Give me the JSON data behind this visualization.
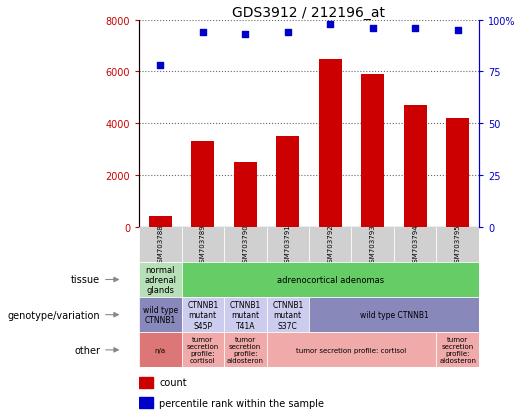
{
  "title": "GDS3912 / 212196_at",
  "samples": [
    "GSM703788",
    "GSM703789",
    "GSM703790",
    "GSM703791",
    "GSM703792",
    "GSM703793",
    "GSM703794",
    "GSM703795"
  ],
  "counts": [
    400,
    3300,
    2500,
    3500,
    6500,
    5900,
    4700,
    4200
  ],
  "percentile_ranks": [
    78,
    94,
    93,
    94,
    98,
    96,
    96,
    95
  ],
  "bar_color": "#cc0000",
  "dot_color": "#0000cc",
  "left_axis_color": "#cc0000",
  "right_axis_color": "#0000cc",
  "ylim_left": [
    0,
    8000
  ],
  "ylim_right": [
    0,
    100
  ],
  "yticks_left": [
    0,
    2000,
    4000,
    6000,
    8000
  ],
  "ytick_labels_left": [
    "0",
    "2000",
    "4000",
    "6000",
    "8000"
  ],
  "yticks_right": [
    0,
    25,
    50,
    75,
    100
  ],
  "ytick_labels_right": [
    "0",
    "25",
    "50",
    "75",
    "100%"
  ],
  "tissue_cells": [
    {
      "text": "normal\nadrenal\nglands",
      "colspan": 1,
      "color": "#b8e0b8"
    },
    {
      "text": "adrenocortical adenomas",
      "colspan": 7,
      "color": "#66cc66"
    }
  ],
  "genotype_cells": [
    {
      "text": "wild type\nCTNNB1",
      "colspan": 1,
      "color": "#8888bb"
    },
    {
      "text": "CTNNB1\nmutant\nS45P",
      "colspan": 1,
      "color": "#ccccee"
    },
    {
      "text": "CTNNB1\nmutant\nT41A",
      "colspan": 1,
      "color": "#ccccee"
    },
    {
      "text": "CTNNB1\nmutant\nS37C",
      "colspan": 1,
      "color": "#ccccee"
    },
    {
      "text": "wild type CTNNB1",
      "colspan": 4,
      "color": "#8888bb"
    }
  ],
  "other_cells": [
    {
      "text": "n/a",
      "colspan": 1,
      "color": "#dd7777"
    },
    {
      "text": "tumor\nsecretion\nprofile:\ncortisol",
      "colspan": 1,
      "color": "#f0aaaa"
    },
    {
      "text": "tumor\nsecretion\nprofile:\naldosteron",
      "colspan": 1,
      "color": "#f0aaaa"
    },
    {
      "text": "tumor secretion profile: cortisol",
      "colspan": 4,
      "color": "#f0aaaa"
    },
    {
      "text": "tumor\nsecretion\nprofile:\naldosteron",
      "colspan": 1,
      "color": "#f0aaaa"
    }
  ],
  "row_labels": [
    "tissue",
    "genotype/variation",
    "other"
  ],
  "background_color": "#ffffff",
  "legend_count_color": "#cc0000",
  "legend_dot_color": "#0000cc"
}
